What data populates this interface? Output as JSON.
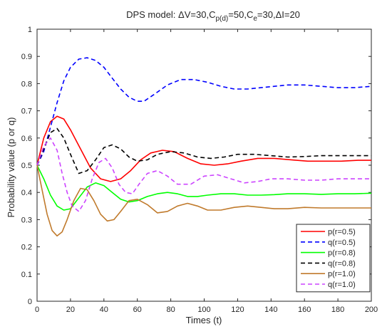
{
  "chart_data": {
    "type": "line",
    "title": {
      "prefix": "DPS model: ",
      "dv_label": "ΔV=30,",
      "cp_base": "C",
      "cp_sub": "p(d)",
      "cp_rest": "=50,",
      "ce_base": "C",
      "ce_sub": "e",
      "ce_rest": "=30,",
      "di_label": "ΔI=20"
    },
    "xlabel": "Times (t)",
    "ylabel": "Probability value (p or q)",
    "xlim": [
      0,
      200
    ],
    "ylim": [
      0,
      1
    ],
    "xticks": [
      0,
      20,
      40,
      60,
      80,
      100,
      120,
      140,
      160,
      180,
      200
    ],
    "xtick_labels": [
      "0",
      "20",
      "40",
      "60",
      "80",
      "100",
      "120",
      "140",
      "160",
      "180",
      "200"
    ],
    "yticks": [
      0,
      0.1,
      0.2,
      0.3,
      0.4,
      0.5,
      0.6,
      0.7,
      0.8,
      0.9,
      1
    ],
    "ytick_labels": [
      "0",
      "0.1",
      "0.2",
      "0.3",
      "0.4",
      "0.5",
      "0.6",
      "0.7",
      "0.8",
      "0.9",
      "1"
    ],
    "grid": false,
    "legend_position": "bottom-right",
    "series": [
      {
        "name": "p(r=0.5)",
        "color": "#ff0000",
        "dash": "solid",
        "x": [
          0,
          4,
          8,
          12,
          16,
          20,
          26,
          32,
          38,
          44,
          50,
          56,
          62,
          68,
          75,
          82,
          90,
          98,
          106,
          114,
          122,
          132,
          142,
          152,
          162,
          172,
          182,
          192,
          200
        ],
        "y": [
          0.5,
          0.6,
          0.66,
          0.68,
          0.67,
          0.63,
          0.56,
          0.49,
          0.45,
          0.44,
          0.45,
          0.48,
          0.52,
          0.545,
          0.555,
          0.55,
          0.525,
          0.505,
          0.5,
          0.505,
          0.515,
          0.525,
          0.525,
          0.52,
          0.515,
          0.515,
          0.515,
          0.518,
          0.518
        ]
      },
      {
        "name": "q(r=0.5)",
        "color": "#0000ff",
        "dash": "dashed",
        "x": [
          0,
          4,
          8,
          12,
          16,
          20,
          25,
          30,
          35,
          40,
          45,
          50,
          55,
          60,
          64,
          70,
          78,
          86,
          94,
          102,
          110,
          118,
          126,
          134,
          142,
          150,
          160,
          170,
          180,
          190,
          200
        ],
        "y": [
          0.5,
          0.55,
          0.64,
          0.73,
          0.81,
          0.86,
          0.89,
          0.895,
          0.885,
          0.86,
          0.82,
          0.78,
          0.75,
          0.735,
          0.735,
          0.76,
          0.795,
          0.815,
          0.815,
          0.805,
          0.79,
          0.78,
          0.78,
          0.785,
          0.79,
          0.795,
          0.795,
          0.79,
          0.785,
          0.785,
          0.79
        ]
      },
      {
        "name": "p(r=0.8)",
        "color": "#00ff00",
        "dash": "solid",
        "x": [
          0,
          4,
          8,
          12,
          16,
          20,
          25,
          30,
          35,
          40,
          45,
          50,
          55,
          60,
          66,
          72,
          78,
          84,
          90,
          96,
          102,
          110,
          118,
          126,
          134,
          142,
          150,
          160,
          170,
          180,
          190,
          200
        ],
        "y": [
          0.5,
          0.45,
          0.39,
          0.35,
          0.335,
          0.34,
          0.38,
          0.42,
          0.435,
          0.425,
          0.4,
          0.375,
          0.365,
          0.37,
          0.385,
          0.395,
          0.4,
          0.395,
          0.385,
          0.385,
          0.39,
          0.395,
          0.395,
          0.39,
          0.39,
          0.392,
          0.395,
          0.395,
          0.393,
          0.395,
          0.395,
          0.397
        ]
      },
      {
        "name": "q(r=0.8)",
        "color": "#000000",
        "dash": "dashed",
        "x": [
          0,
          4,
          8,
          12,
          16,
          20,
          25,
          30,
          35,
          40,
          45,
          50,
          55,
          60,
          66,
          72,
          80,
          88,
          96,
          104,
          112,
          120,
          130,
          140,
          150,
          160,
          170,
          180,
          190,
          200
        ],
        "y": [
          0.5,
          0.56,
          0.62,
          0.635,
          0.6,
          0.54,
          0.47,
          0.48,
          0.52,
          0.565,
          0.575,
          0.56,
          0.53,
          0.515,
          0.52,
          0.54,
          0.55,
          0.545,
          0.53,
          0.525,
          0.53,
          0.54,
          0.54,
          0.535,
          0.53,
          0.532,
          0.535,
          0.535,
          0.535,
          0.535
        ]
      },
      {
        "name": "p(r=1.0)",
        "color": "#c07a2c",
        "dash": "solid",
        "x": [
          0,
          3,
          6,
          9,
          12,
          15,
          18,
          22,
          26,
          30,
          34,
          38,
          42,
          46,
          50,
          55,
          60,
          66,
          72,
          78,
          84,
          90,
          96,
          102,
          110,
          118,
          126,
          134,
          142,
          150,
          160,
          170,
          180,
          190,
          200
        ],
        "y": [
          0.5,
          0.41,
          0.32,
          0.26,
          0.24,
          0.255,
          0.3,
          0.37,
          0.415,
          0.41,
          0.37,
          0.32,
          0.295,
          0.3,
          0.33,
          0.37,
          0.375,
          0.355,
          0.325,
          0.33,
          0.35,
          0.36,
          0.35,
          0.335,
          0.335,
          0.345,
          0.35,
          0.345,
          0.34,
          0.34,
          0.345,
          0.343,
          0.343,
          0.343,
          0.343
        ]
      },
      {
        "name": "q(r=1.0)",
        "color": "#cc44ff",
        "dash": "dashed",
        "x": [
          0,
          4,
          8,
          12,
          15,
          18,
          21,
          25,
          29,
          33,
          37,
          41,
          45,
          49,
          53,
          57,
          61,
          66,
          72,
          78,
          84,
          92,
          100,
          108,
          116,
          124,
          132,
          140,
          150,
          160,
          170,
          180,
          190,
          200
        ],
        "y": [
          0.5,
          0.57,
          0.6,
          0.555,
          0.47,
          0.4,
          0.35,
          0.33,
          0.37,
          0.45,
          0.51,
          0.525,
          0.49,
          0.43,
          0.4,
          0.395,
          0.43,
          0.47,
          0.48,
          0.46,
          0.43,
          0.43,
          0.46,
          0.465,
          0.45,
          0.435,
          0.44,
          0.45,
          0.45,
          0.445,
          0.445,
          0.45,
          0.45,
          0.45
        ]
      }
    ]
  }
}
